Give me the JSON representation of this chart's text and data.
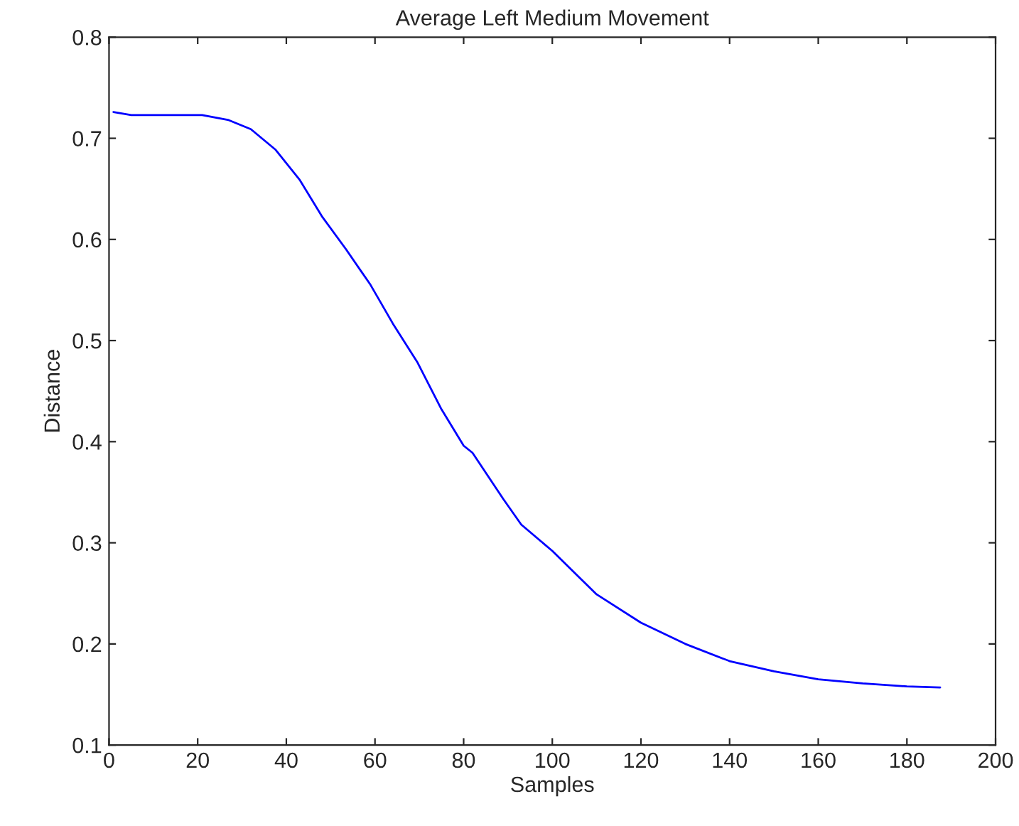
{
  "chart_data": {
    "type": "line",
    "title": "Average Left Medium Movement",
    "xlabel": "Samples",
    "ylabel": "Distance",
    "xlim": [
      0,
      200
    ],
    "xticks": [
      0,
      20,
      40,
      60,
      80,
      100,
      120,
      140,
      160,
      180,
      200
    ],
    "ylim": [
      0.1,
      0.8
    ],
    "yticks": [
      0.1,
      0.2,
      0.3,
      0.4,
      0.5,
      0.6,
      0.7,
      0.8
    ],
    "grid": false,
    "legend": false,
    "marker": "none",
    "line_style": "solid",
    "series": [
      {
        "color": "#0000ff",
        "x": [
          1,
          5,
          21,
          27,
          32,
          37.5,
          43,
          48,
          53.5,
          59,
          64,
          69.5,
          75,
          80,
          82,
          89,
          93,
          100,
          110,
          120,
          130,
          140,
          150,
          160,
          170,
          180,
          187.5
        ],
        "values": [
          0.726,
          0.723,
          0.723,
          0.718,
          0.709,
          0.689,
          0.659,
          0.623,
          0.59,
          0.555,
          0.517,
          0.479,
          0.432,
          0.396,
          0.389,
          0.343,
          0.318,
          0.292,
          0.249,
          0.221,
          0.2,
          0.183,
          0.173,
          0.165,
          0.161,
          0.158,
          0.157
        ]
      }
    ]
  }
}
